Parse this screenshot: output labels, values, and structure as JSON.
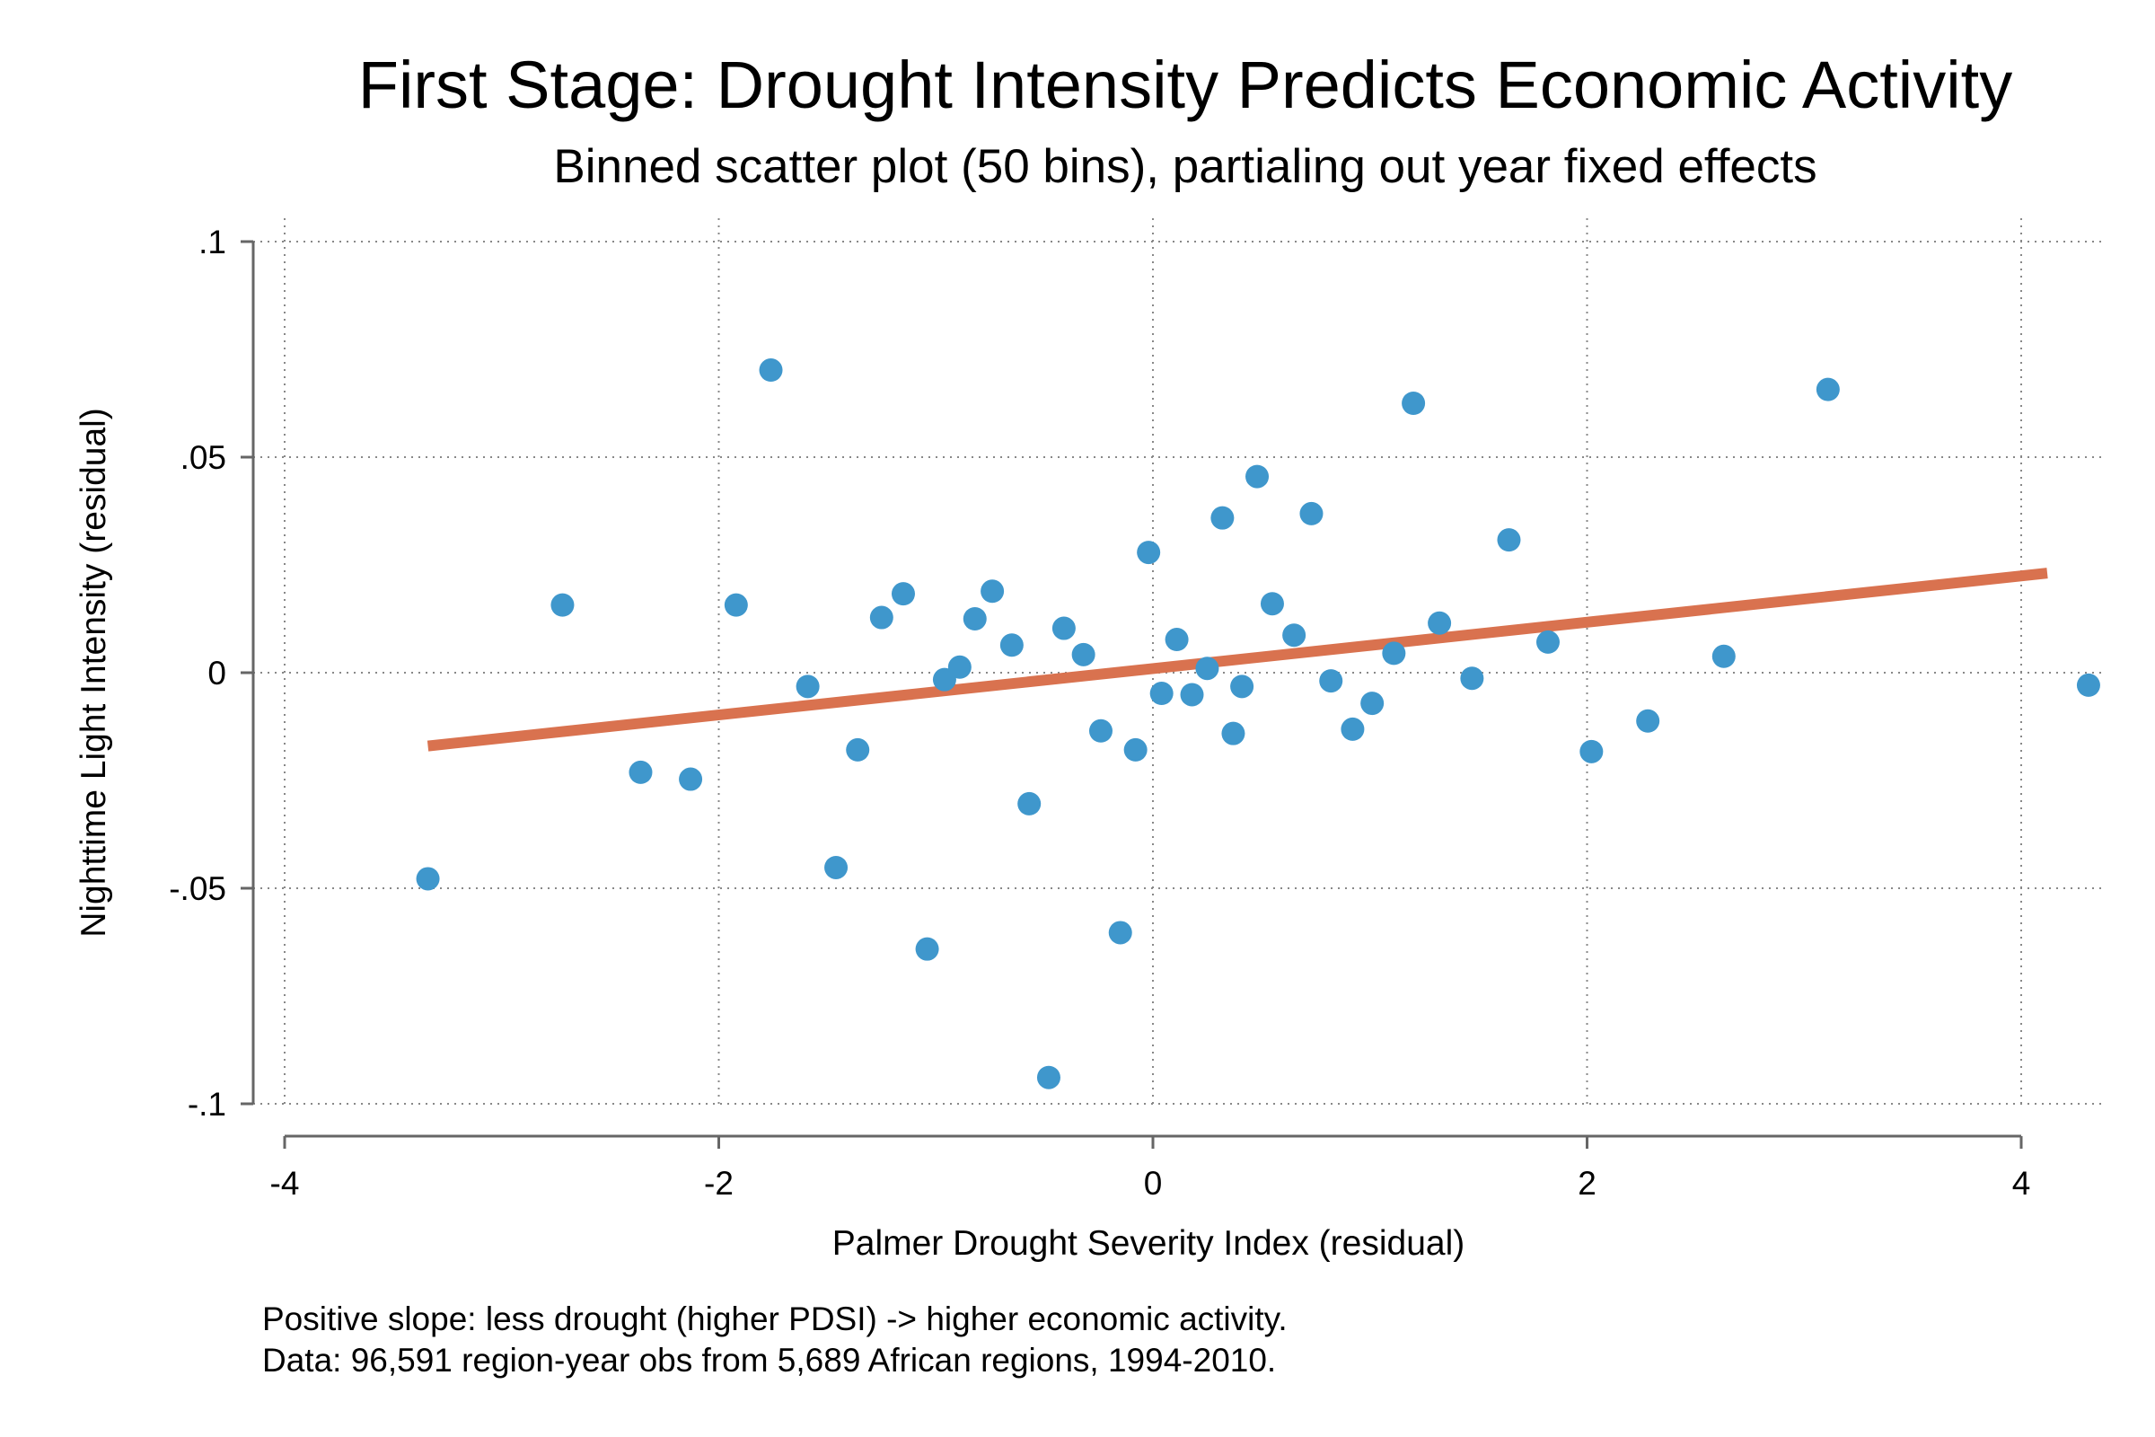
{
  "chart_data": {
    "type": "scatter",
    "title": "First Stage: Drought Intensity Predicts Economic Activity",
    "subtitle": "Binned scatter plot (50 bins), partialing out year fixed effects",
    "xlabel": "Palmer Drought Severity Index (residual)",
    "ylabel": "Nighttime Light Intensity (residual)",
    "xlim": [
      -4,
      4.3
    ],
    "ylim": [
      -0.1,
      0.1
    ],
    "xticks": [
      {
        "v": -4,
        "label": "-4"
      },
      {
        "v": -2,
        "label": "-2"
      },
      {
        "v": 0,
        "label": "0"
      },
      {
        "v": 2,
        "label": "2"
      },
      {
        "v": 4,
        "label": "4"
      }
    ],
    "yticks": [
      {
        "v": 0.1,
        "label": ".1"
      },
      {
        "v": 0.05,
        "label": ".05"
      },
      {
        "v": 0,
        "label": "0"
      },
      {
        "v": -0.05,
        "label": "-.05"
      },
      {
        "v": -0.1,
        "label": "-.1"
      }
    ],
    "grid": true,
    "colors": {
      "points": "#3f97cc",
      "fit_line": "#d9724f",
      "axis": "#666666"
    },
    "points": [
      [
        -3.34,
        -0.0478
      ],
      [
        -2.72,
        0.0157
      ],
      [
        -2.36,
        -0.0231
      ],
      [
        -2.13,
        -0.0247
      ],
      [
        -1.92,
        0.0157
      ],
      [
        -1.76,
        0.0702
      ],
      [
        -1.59,
        -0.0032
      ],
      [
        -1.46,
        -0.0452
      ],
      [
        -1.36,
        -0.0179
      ],
      [
        -1.25,
        0.0128
      ],
      [
        -1.15,
        0.0183
      ],
      [
        -1.04,
        -0.0641
      ],
      [
        -0.96,
        -0.0016
      ],
      [
        -0.89,
        0.0013
      ],
      [
        -0.82,
        0.0125
      ],
      [
        -0.74,
        0.0189
      ],
      [
        -0.65,
        0.0064
      ],
      [
        -0.57,
        -0.0304
      ],
      [
        -0.48,
        -0.0939
      ],
      [
        -0.41,
        0.0103
      ],
      [
        -0.32,
        0.0042
      ],
      [
        -0.24,
        -0.0135
      ],
      [
        -0.15,
        -0.0603
      ],
      [
        -0.08,
        -0.0179
      ],
      [
        -0.02,
        0.0279
      ],
      [
        0.04,
        -0.0048
      ],
      [
        0.11,
        0.0077
      ],
      [
        0.18,
        -0.0051
      ],
      [
        0.25,
        0.001
      ],
      [
        0.32,
        0.0359
      ],
      [
        0.37,
        -0.0141
      ],
      [
        0.41,
        -0.0032
      ],
      [
        0.48,
        0.0455
      ],
      [
        0.55,
        0.016
      ],
      [
        0.65,
        0.0087
      ],
      [
        0.73,
        0.0369
      ],
      [
        0.82,
        -0.0019
      ],
      [
        0.92,
        -0.0131
      ],
      [
        1.01,
        -0.0071
      ],
      [
        1.11,
        0.0045
      ],
      [
        1.2,
        0.0625
      ],
      [
        1.32,
        0.0115
      ],
      [
        1.47,
        -0.0013
      ],
      [
        1.64,
        0.0308
      ],
      [
        1.82,
        0.0071
      ],
      [
        2.02,
        -0.0183
      ],
      [
        2.28,
        -0.0112
      ],
      [
        2.63,
        0.0038
      ],
      [
        3.11,
        0.0657
      ],
      [
        4.31,
        -0.0029
      ]
    ],
    "fit_line": {
      "x": [
        -3.34,
        4.12
      ],
      "y": [
        -0.017,
        0.0231
      ]
    },
    "notes": [
      "Positive slope: less drought (higher PDSI) -> higher economic activity.",
      "Data: 96,591 region-year obs from 5,689 African regions, 1994-2010."
    ]
  }
}
